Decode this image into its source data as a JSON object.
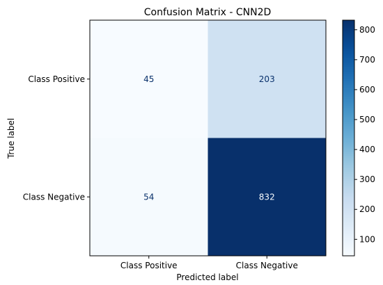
{
  "chart_data": {
    "type": "heatmap",
    "title": "Confusion Matrix - CNN2D",
    "xlabel": "Predicted label",
    "ylabel": "True label",
    "x_categories": [
      "Class Positive",
      "Class Negative"
    ],
    "y_categories": [
      "Class Positive",
      "Class Negative"
    ],
    "values": [
      [
        45,
        203
      ],
      [
        54,
        832
      ]
    ],
    "colormap": "Blues",
    "colorbar": {
      "range": [
        45,
        832
      ],
      "ticks": [
        100,
        200,
        300,
        400,
        500,
        600,
        700,
        800
      ]
    },
    "grid": false
  }
}
